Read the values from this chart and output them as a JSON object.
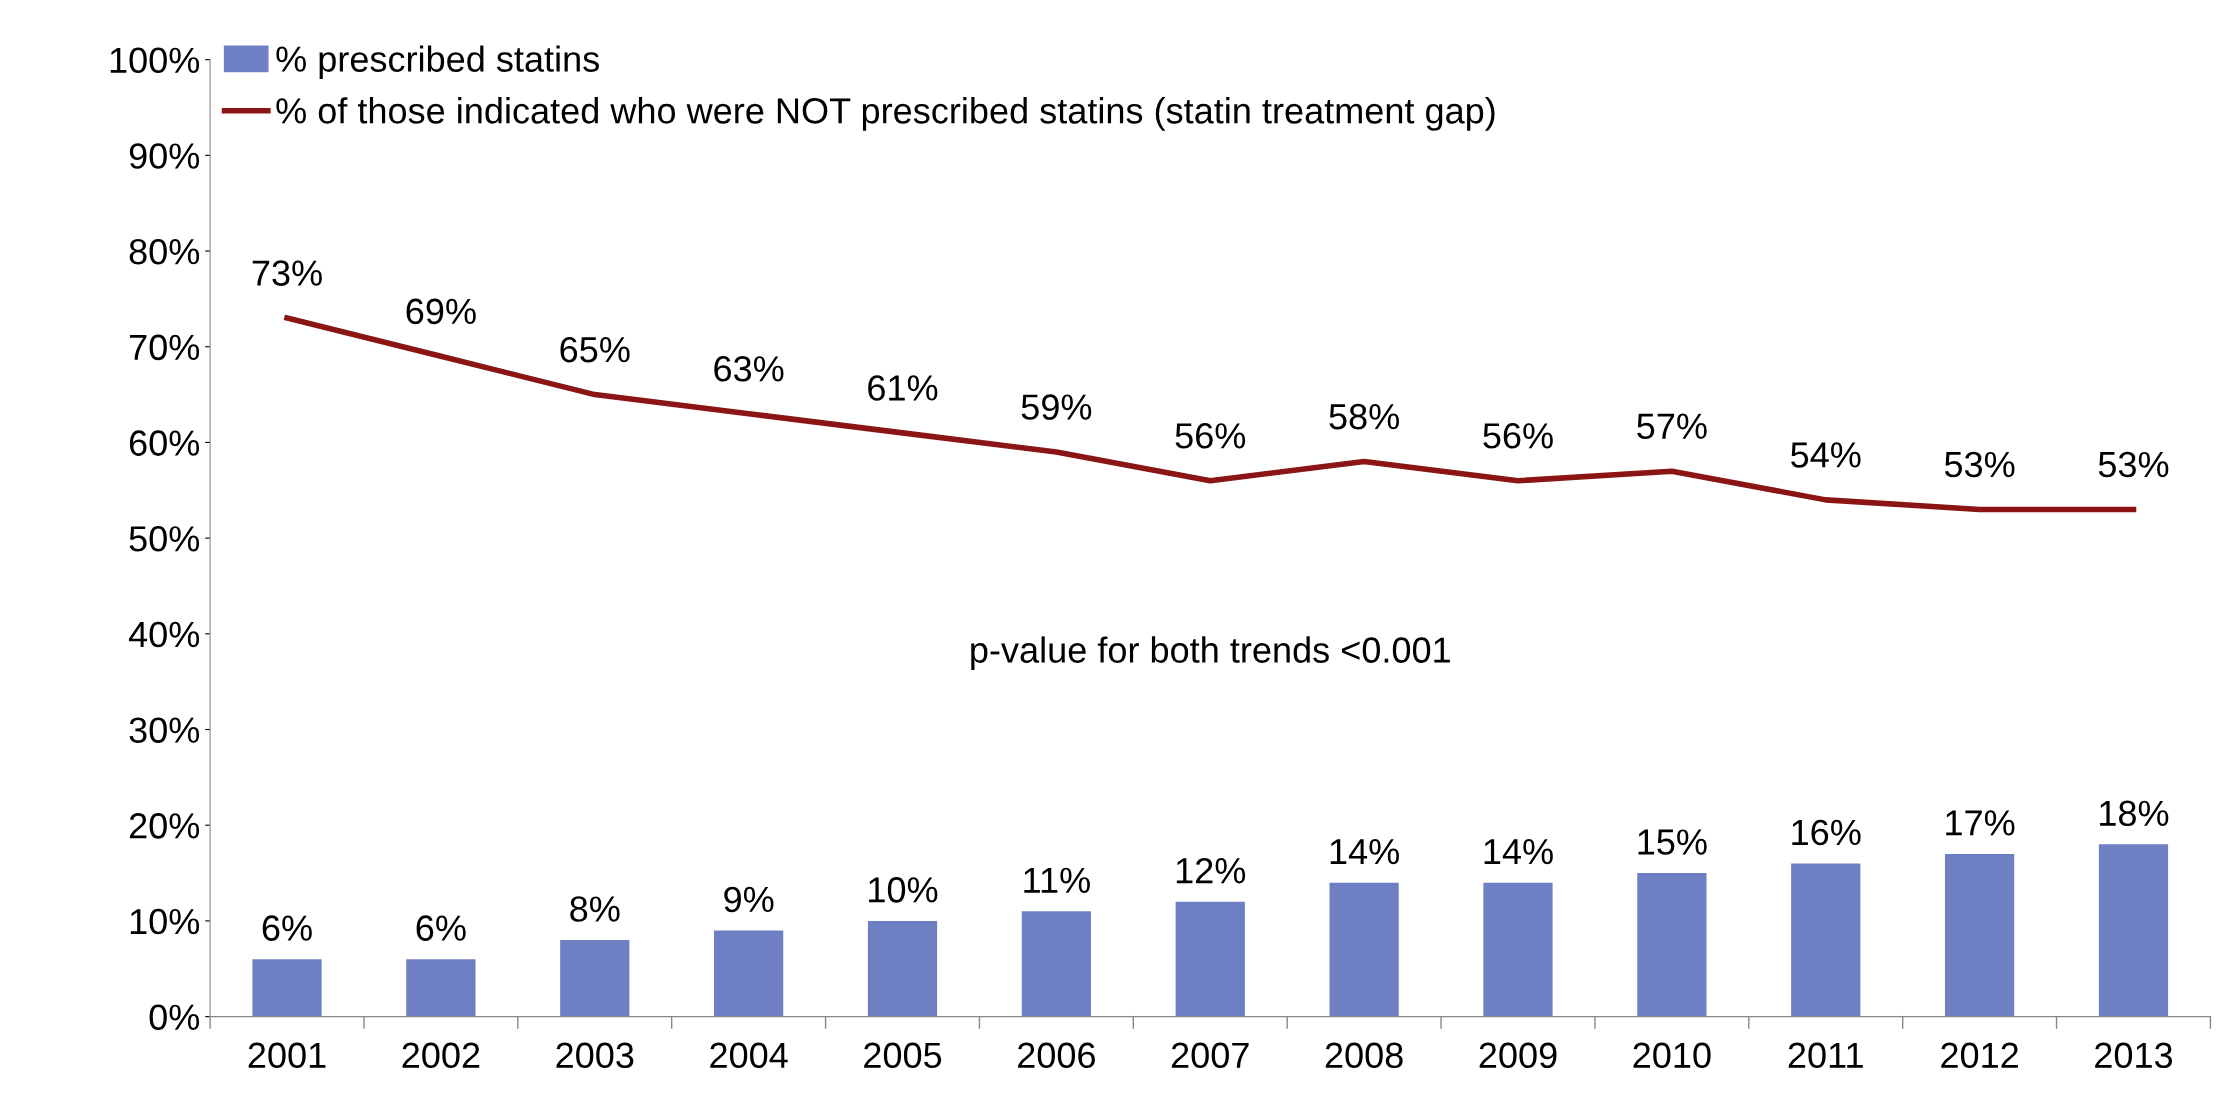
{
  "chart_data": {
    "type": "bar",
    "categories": [
      "2001",
      "2002",
      "2003",
      "2004",
      "2005",
      "2006",
      "2007",
      "2008",
      "2009",
      "2010",
      "2011",
      "2012",
      "2013"
    ],
    "series": [
      {
        "name": "% prescribed statins",
        "color": "#6f7fc4",
        "values": [
          6,
          6,
          8,
          9,
          10,
          11,
          12,
          14,
          14,
          15,
          16,
          17,
          18
        ],
        "value_labels": [
          "6%",
          "6%",
          "8%",
          "9%",
          "10%",
          "11%",
          "12%",
          "14%",
          "14%",
          "15%",
          "16%",
          "17%",
          "18%"
        ]
      },
      {
        "name": "% of those indicated who were NOT prescribed statins (statin treatment gap)",
        "type": "line",
        "color": "#8b1414",
        "values": [
          73,
          69,
          65,
          63,
          61,
          59,
          56,
          58,
          56,
          57,
          54,
          53,
          53
        ],
        "value_labels": [
          "73%",
          "69%",
          "65%",
          "63%",
          "61%",
          "59%",
          "56%",
          "58%",
          "56%",
          "57%",
          "54%",
          "53%",
          "53%"
        ]
      }
    ],
    "ylim": [
      0,
      100
    ],
    "yticks": [
      {
        "value": 0,
        "label": "0%"
      },
      {
        "value": 10,
        "label": "10%"
      },
      {
        "value": 20,
        "label": "20%"
      },
      {
        "value": 30,
        "label": "30%"
      },
      {
        "value": 40,
        "label": "40%"
      },
      {
        "value": 50,
        "label": "50%"
      },
      {
        "value": 60,
        "label": "60%"
      },
      {
        "value": 70,
        "label": "70%"
      },
      {
        "value": 80,
        "label": "80%"
      },
      {
        "value": 90,
        "label": "90%"
      },
      {
        "value": 100,
        "label": "100%"
      }
    ],
    "grid": false,
    "legend": "top left",
    "marker": "none",
    "line_style": "solid",
    "annotations": [
      {
        "text": "p-value for both trends <0.001"
      }
    ]
  }
}
